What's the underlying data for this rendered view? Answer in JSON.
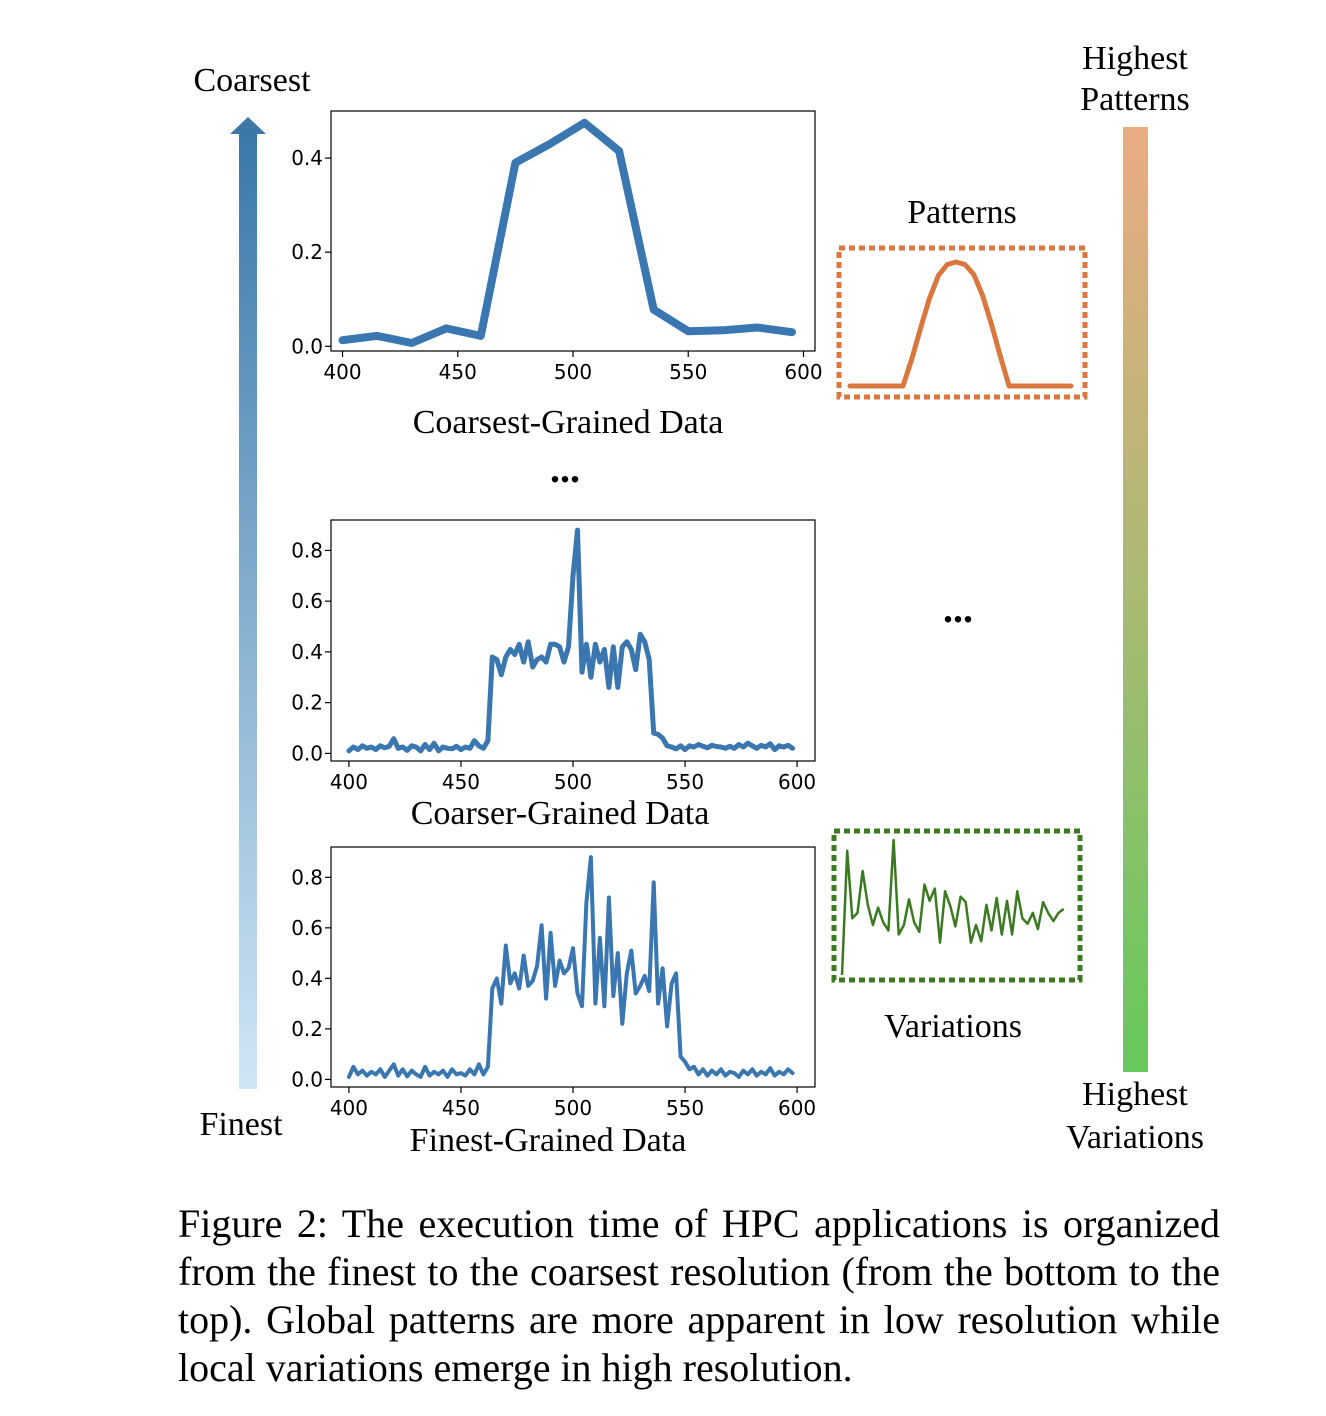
{
  "labels": {
    "coarsest": "Coarsest",
    "finest": "Finest",
    "highest_patterns_1": "Highest",
    "highest_patterns_2": "Patterns",
    "highest_variations_1": "Highest",
    "highest_variations_2": "Variations",
    "patterns": "Patterns",
    "variations": "Variations",
    "ellipsis": "...",
    "ellipsis_right": "..."
  },
  "colors": {
    "series_line": "#3a76b0",
    "left_arrow_top": "#3b78a8",
    "left_arrow_bottom": "#cfe6f7",
    "right_bar_top": "#eaab85",
    "right_bar_bottom": "#66c95c",
    "patterns_color": "#d9773f",
    "variations_color": "#3b7a22"
  },
  "caption": "Figure 2: The execution time of HPC applications is organized from the finest to the coarsest resolution (from the bottom to the top). Global patterns are more apparent in low resolution while local variations emerge in high resolution.",
  "chart_data": [
    {
      "type": "line",
      "xlabel": "Coarsest-Grained Data",
      "ylabel": "",
      "xlim": [
        395,
        605
      ],
      "ylim": [
        -0.01,
        0.5
      ],
      "xticks": [
        400,
        450,
        500,
        550,
        600
      ],
      "yticks": [
        0.0,
        0.2,
        0.4
      ],
      "ytick_labels": [
        "0.0",
        "0.2",
        "0.4"
      ],
      "grid": false,
      "series": [
        {
          "x": [
            400,
            415,
            430,
            445,
            460,
            475,
            490,
            505,
            520,
            535,
            550,
            565,
            580,
            595
          ],
          "y": [
            0.013,
            0.022,
            0.007,
            0.038,
            0.022,
            0.39,
            0.43,
            0.475,
            0.415,
            0.078,
            0.032,
            0.034,
            0.04,
            0.03
          ]
        }
      ]
    },
    {
      "type": "line",
      "xlabel": "Coarser-Grained Data",
      "ylabel": "",
      "xlim": [
        392,
        608
      ],
      "ylim": [
        -0.03,
        0.92
      ],
      "xticks": [
        400,
        450,
        500,
        550,
        600
      ],
      "yticks": [
        0.0,
        0.2,
        0.4,
        0.6,
        0.8
      ],
      "ytick_labels": [
        "0.0",
        "0.2",
        "0.4",
        "0.6",
        "0.8"
      ],
      "grid": false,
      "series": [
        {
          "x": [
            400,
            402,
            404,
            406,
            408,
            410,
            412,
            414,
            416,
            418,
            420,
            422,
            424,
            426,
            428,
            430,
            432,
            434,
            436,
            438,
            440,
            442,
            444,
            446,
            448,
            450,
            452,
            454,
            456,
            458,
            460,
            462,
            464,
            466,
            468,
            470,
            472,
            474,
            476,
            478,
            480,
            482,
            484,
            486,
            488,
            490,
            492,
            494,
            496,
            498,
            500,
            502,
            504,
            506,
            508,
            510,
            512,
            514,
            516,
            518,
            520,
            522,
            524,
            526,
            528,
            530,
            532,
            534,
            536,
            538,
            540,
            542,
            544,
            546,
            548,
            550,
            552,
            554,
            556,
            558,
            560,
            562,
            564,
            566,
            568,
            570,
            572,
            574,
            576,
            578,
            580,
            582,
            584,
            586,
            588,
            590,
            592,
            594,
            596,
            598
          ],
          "y": [
            0.01,
            0.025,
            0.015,
            0.03,
            0.02,
            0.025,
            0.015,
            0.03,
            0.022,
            0.028,
            0.058,
            0.02,
            0.025,
            0.012,
            0.03,
            0.025,
            0.01,
            0.035,
            0.015,
            0.04,
            0.01,
            0.025,
            0.02,
            0.018,
            0.028,
            0.015,
            0.025,
            0.02,
            0.05,
            0.03,
            0.02,
            0.05,
            0.38,
            0.37,
            0.31,
            0.38,
            0.41,
            0.39,
            0.43,
            0.36,
            0.44,
            0.34,
            0.37,
            0.38,
            0.36,
            0.43,
            0.43,
            0.42,
            0.36,
            0.42,
            0.7,
            0.88,
            0.32,
            0.43,
            0.3,
            0.43,
            0.36,
            0.41,
            0.26,
            0.42,
            0.26,
            0.42,
            0.44,
            0.41,
            0.33,
            0.47,
            0.44,
            0.37,
            0.08,
            0.075,
            0.06,
            0.03,
            0.025,
            0.018,
            0.03,
            0.015,
            0.03,
            0.025,
            0.035,
            0.028,
            0.022,
            0.032,
            0.027,
            0.025,
            0.02,
            0.028,
            0.02,
            0.035,
            0.025,
            0.04,
            0.03,
            0.02,
            0.032,
            0.025,
            0.038,
            0.015,
            0.03,
            0.025,
            0.032,
            0.02
          ]
        }
      ]
    },
    {
      "type": "line",
      "xlabel": "Finest-Grained Data",
      "ylabel": "",
      "xlim": [
        392,
        608
      ],
      "ylim": [
        -0.03,
        0.92
      ],
      "xticks": [
        400,
        450,
        500,
        550,
        600
      ],
      "yticks": [
        0.0,
        0.2,
        0.4,
        0.6,
        0.8
      ],
      "ytick_labels": [
        "0.0",
        "0.2",
        "0.4",
        "0.6",
        "0.8"
      ],
      "grid": false,
      "series": [
        {
          "x": [
            400,
            402,
            404,
            406,
            408,
            410,
            412,
            414,
            416,
            418,
            420,
            422,
            424,
            426,
            428,
            430,
            432,
            434,
            436,
            438,
            440,
            442,
            444,
            446,
            448,
            450,
            452,
            454,
            456,
            458,
            460,
            462,
            464,
            466,
            468,
            470,
            472,
            474,
            476,
            478,
            480,
            482,
            484,
            486,
            488,
            490,
            492,
            494,
            496,
            498,
            500,
            502,
            504,
            506,
            508,
            510,
            512,
            514,
            516,
            518,
            520,
            522,
            524,
            526,
            528,
            530,
            532,
            534,
            536,
            538,
            540,
            542,
            544,
            546,
            548,
            550,
            552,
            554,
            556,
            558,
            560,
            562,
            564,
            566,
            568,
            570,
            572,
            574,
            576,
            578,
            580,
            582,
            584,
            586,
            588,
            590,
            592,
            594,
            596,
            598
          ],
          "y": [
            0.01,
            0.05,
            0.02,
            0.035,
            0.015,
            0.03,
            0.02,
            0.04,
            0.01,
            0.035,
            0.06,
            0.015,
            0.04,
            0.012,
            0.035,
            0.02,
            0.01,
            0.05,
            0.015,
            0.03,
            0.02,
            0.035,
            0.01,
            0.04,
            0.02,
            0.025,
            0.015,
            0.04,
            0.02,
            0.06,
            0.02,
            0.05,
            0.36,
            0.4,
            0.3,
            0.53,
            0.38,
            0.42,
            0.36,
            0.49,
            0.37,
            0.39,
            0.45,
            0.61,
            0.32,
            0.58,
            0.37,
            0.47,
            0.42,
            0.44,
            0.52,
            0.34,
            0.29,
            0.7,
            0.88,
            0.3,
            0.56,
            0.29,
            0.72,
            0.33,
            0.5,
            0.22,
            0.42,
            0.51,
            0.34,
            0.37,
            0.41,
            0.35,
            0.78,
            0.3,
            0.44,
            0.21,
            0.38,
            0.42,
            0.09,
            0.07,
            0.04,
            0.05,
            0.02,
            0.04,
            0.015,
            0.035,
            0.02,
            0.04,
            0.015,
            0.03,
            0.025,
            0.01,
            0.035,
            0.02,
            0.04,
            0.015,
            0.03,
            0.02,
            0.045,
            0.015,
            0.03,
            0.02,
            0.04,
            0.025
          ]
        }
      ]
    },
    {
      "type": "line",
      "xlabel": "",
      "ylabel": "",
      "title": "Patterns",
      "xlim": [
        0,
        1
      ],
      "ylim": [
        0,
        1
      ],
      "grid": false,
      "series": [
        {
          "x": [
            0.0,
            0.24,
            0.28,
            0.32,
            0.36,
            0.4,
            0.44,
            0.48,
            0.52,
            0.56,
            0.6,
            0.64,
            0.68,
            0.72,
            1.0
          ],
          "y": [
            0.0,
            0.0,
            0.22,
            0.47,
            0.71,
            0.89,
            0.98,
            1.0,
            0.98,
            0.9,
            0.73,
            0.5,
            0.24,
            0.0,
            0.0
          ]
        }
      ]
    },
    {
      "type": "line",
      "xlabel": "",
      "ylabel": "",
      "title": "Variations",
      "xlim": [
        0,
        45
      ],
      "ylim": [
        0,
        1
      ],
      "grid": false,
      "series": [
        {
          "x": [
            0,
            1,
            2,
            3,
            4,
            5,
            6,
            7,
            8,
            9,
            10,
            11,
            12,
            13,
            14,
            15,
            16,
            17,
            18,
            19,
            20,
            21,
            22,
            23,
            24,
            25,
            26,
            27,
            28,
            29,
            30,
            31,
            32,
            33,
            34,
            35,
            36,
            37,
            38,
            39,
            40,
            41,
            42,
            43
          ],
          "y": [
            0.0,
            0.92,
            0.42,
            0.46,
            0.77,
            0.52,
            0.37,
            0.5,
            0.39,
            0.33,
            1.0,
            0.3,
            0.37,
            0.56,
            0.39,
            0.32,
            0.67,
            0.55,
            0.64,
            0.24,
            0.62,
            0.51,
            0.36,
            0.58,
            0.54,
            0.24,
            0.37,
            0.25,
            0.52,
            0.33,
            0.57,
            0.3,
            0.55,
            0.3,
            0.62,
            0.42,
            0.38,
            0.46,
            0.34,
            0.54,
            0.46,
            0.4,
            0.46,
            0.49
          ]
        }
      ]
    }
  ]
}
